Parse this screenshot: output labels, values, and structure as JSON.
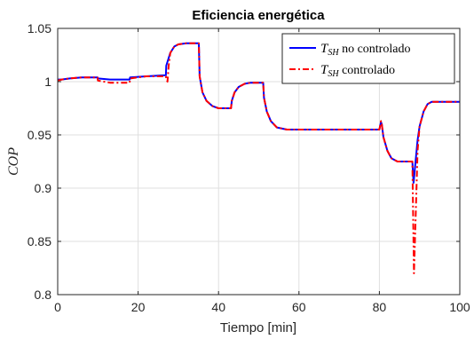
{
  "chart_data": {
    "type": "line",
    "title": "Eficiencia energética",
    "xlabel": "Tiempo [min]",
    "ylabel": "COP",
    "xlim": [
      0,
      100
    ],
    "ylim": [
      0.8,
      1.05
    ],
    "xticks": [
      0,
      20,
      40,
      60,
      80,
      100
    ],
    "yticks": [
      0.8,
      0.85,
      0.9,
      0.95,
      1,
      1.05
    ],
    "xtick_labels": [
      "0",
      "20",
      "40",
      "60",
      "80",
      "100"
    ],
    "ytick_labels": [
      "0.8",
      "0.85",
      "0.9",
      "0.95",
      "1",
      "1.05"
    ],
    "grid": true,
    "legend_position": "top-right",
    "series": [
      {
        "name": "T_SH no controlado",
        "legend_symbol": "T",
        "legend_subscript": "SH",
        "legend_suffix": " no controlado",
        "color": "#0000ff",
        "style": "solid",
        "points": [
          [
            0,
            1.002
          ],
          [
            1,
            1.002
          ],
          [
            3,
            1.003
          ],
          [
            6,
            1.004
          ],
          [
            9.9,
            1.004
          ],
          [
            10,
            1.003
          ],
          [
            13,
            1.002
          ],
          [
            17.9,
            1.002
          ],
          [
            18,
            1.004
          ],
          [
            22,
            1.005
          ],
          [
            26.9,
            1.006
          ],
          [
            27,
            1.015
          ],
          [
            28,
            1.027
          ],
          [
            29,
            1.033
          ],
          [
            30,
            1.035
          ],
          [
            32,
            1.036
          ],
          [
            35.1,
            1.036
          ],
          [
            35.3,
            1.005
          ],
          [
            36,
            0.99
          ],
          [
            37,
            0.982
          ],
          [
            38.5,
            0.977
          ],
          [
            40,
            0.975
          ],
          [
            43.1,
            0.975
          ],
          [
            43.3,
            0.982
          ],
          [
            44,
            0.99
          ],
          [
            45,
            0.995
          ],
          [
            46.5,
            0.998
          ],
          [
            48,
            0.999
          ],
          [
            51.1,
            0.999
          ],
          [
            51.3,
            0.985
          ],
          [
            52,
            0.972
          ],
          [
            53,
            0.963
          ],
          [
            54.5,
            0.957
          ],
          [
            57,
            0.955
          ],
          [
            60,
            0.955
          ],
          [
            70,
            0.955
          ],
          [
            80,
            0.955
          ],
          [
            80.4,
            0.962
          ],
          [
            80.6,
            0.96
          ],
          [
            81,
            0.948
          ],
          [
            82,
            0.935
          ],
          [
            83,
            0.928
          ],
          [
            84.5,
            0.925
          ],
          [
            87,
            0.925
          ],
          [
            88.2,
            0.925
          ],
          [
            88.5,
            0.905
          ],
          [
            89,
            0.925
          ],
          [
            89.5,
            0.945
          ],
          [
            90,
            0.958
          ],
          [
            91,
            0.972
          ],
          [
            92,
            0.979
          ],
          [
            93,
            0.981
          ],
          [
            100,
            0.981
          ]
        ]
      },
      {
        "name": "T_SH controlado",
        "legend_symbol": "T",
        "legend_subscript": "SH",
        "legend_suffix": " controlado",
        "color": "#ff0000",
        "style": "dashdot",
        "points": [
          [
            0,
            1.001
          ],
          [
            1,
            1.002
          ],
          [
            3,
            1.003
          ],
          [
            6,
            1.004
          ],
          [
            9.9,
            1.004
          ],
          [
            10,
            1.001
          ],
          [
            13,
            0.999
          ],
          [
            17.9,
            0.999
          ],
          [
            18,
            1.003
          ],
          [
            22,
            1.005
          ],
          [
            26.9,
            1.005
          ],
          [
            27,
            1.003
          ],
          [
            27.3,
            1.0
          ],
          [
            27.6,
            1.015
          ],
          [
            28,
            1.027
          ],
          [
            29,
            1.033
          ],
          [
            30,
            1.035
          ],
          [
            32,
            1.036
          ],
          [
            35.1,
            1.036
          ],
          [
            35.3,
            1.005
          ],
          [
            36,
            0.99
          ],
          [
            37,
            0.982
          ],
          [
            38.5,
            0.977
          ],
          [
            40,
            0.975
          ],
          [
            43.1,
            0.975
          ],
          [
            43.3,
            0.982
          ],
          [
            44,
            0.99
          ],
          [
            45,
            0.995
          ],
          [
            46.5,
            0.998
          ],
          [
            48,
            0.999
          ],
          [
            51.1,
            0.999
          ],
          [
            51.3,
            0.985
          ],
          [
            52,
            0.972
          ],
          [
            53,
            0.963
          ],
          [
            54.5,
            0.957
          ],
          [
            57,
            0.955
          ],
          [
            60,
            0.955
          ],
          [
            70,
            0.955
          ],
          [
            80,
            0.955
          ],
          [
            80.4,
            0.963
          ],
          [
            80.6,
            0.96
          ],
          [
            81,
            0.948
          ],
          [
            82,
            0.935
          ],
          [
            83,
            0.928
          ],
          [
            84.5,
            0.925
          ],
          [
            87,
            0.925
          ],
          [
            88.2,
            0.925
          ],
          [
            88.6,
            0.82
          ],
          [
            89,
            0.87
          ],
          [
            89.5,
            0.935
          ],
          [
            90,
            0.958
          ],
          [
            91,
            0.972
          ],
          [
            92,
            0.979
          ],
          [
            93,
            0.981
          ],
          [
            100,
            0.981
          ]
        ]
      }
    ]
  }
}
